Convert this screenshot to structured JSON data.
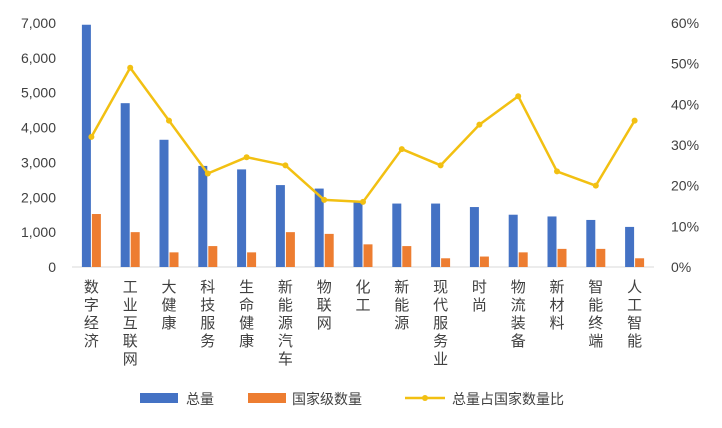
{
  "chart_data": {
    "type": "bar",
    "title": "",
    "xlabel": "",
    "ylabel": "",
    "categories": [
      "数字经济",
      "工业互联网",
      "大健康",
      "科技服务",
      "生命健康",
      "新能源汽车",
      "物联网",
      "化工",
      "新能源",
      "现代服务业",
      "时尚",
      "物流装备",
      "新材料",
      "智能终端",
      "人工智能"
    ],
    "series": [
      {
        "name": "总量",
        "kind": "bar",
        "axis": "left",
        "color": "#4472C4",
        "values": [
          6950,
          4700,
          3650,
          2900,
          2800,
          2350,
          2250,
          1850,
          1820,
          1820,
          1720,
          1500,
          1450,
          1350,
          1150
        ]
      },
      {
        "name": "国家级数量",
        "kind": "bar",
        "axis": "left",
        "color": "#ED7D31",
        "values": [
          1520,
          1000,
          420,
          600,
          420,
          1000,
          950,
          650,
          600,
          250,
          300,
          420,
          520,
          520,
          250
        ]
      },
      {
        "name": "总量占国家数量比",
        "kind": "line",
        "axis": "right",
        "color": "#F2C012",
        "values": [
          0.32,
          0.49,
          0.36,
          0.23,
          0.27,
          0.25,
          0.165,
          0.16,
          0.29,
          0.25,
          0.35,
          0.42,
          0.235,
          0.2,
          0.36
        ]
      }
    ],
    "ylim_left": [
      0,
      7000
    ],
    "yticks_left": [
      "0",
      "1,000",
      "2,000",
      "3,000",
      "4,000",
      "5,000",
      "6,000",
      "7,000"
    ],
    "ylim_right": [
      0,
      0.6
    ],
    "yticks_right": [
      "0%",
      "10%",
      "20%",
      "30%",
      "40%",
      "50%",
      "60%"
    ],
    "grid": false,
    "legend_position": "bottom"
  }
}
